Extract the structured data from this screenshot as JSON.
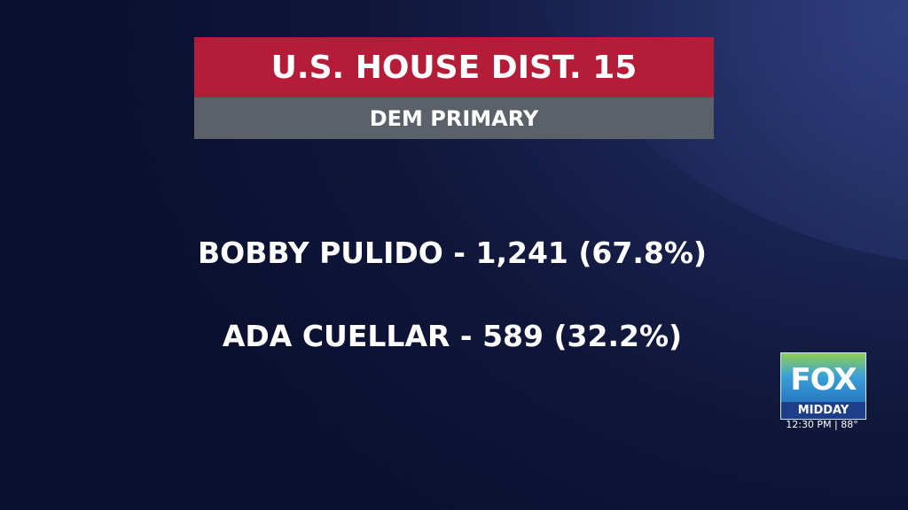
{
  "header": {
    "title": "U.S. HOUSE DIST. 15",
    "subtitle": "DEM PRIMARY"
  },
  "results": [
    "BOBBY PULIDO - 1,241 (67.8%)",
    "ADA CUELLAR - 589 (32.2%)"
  ],
  "logo": {
    "brand": "FOX",
    "show": "MIDDAY",
    "status": "12:30 PM | 88°"
  }
}
